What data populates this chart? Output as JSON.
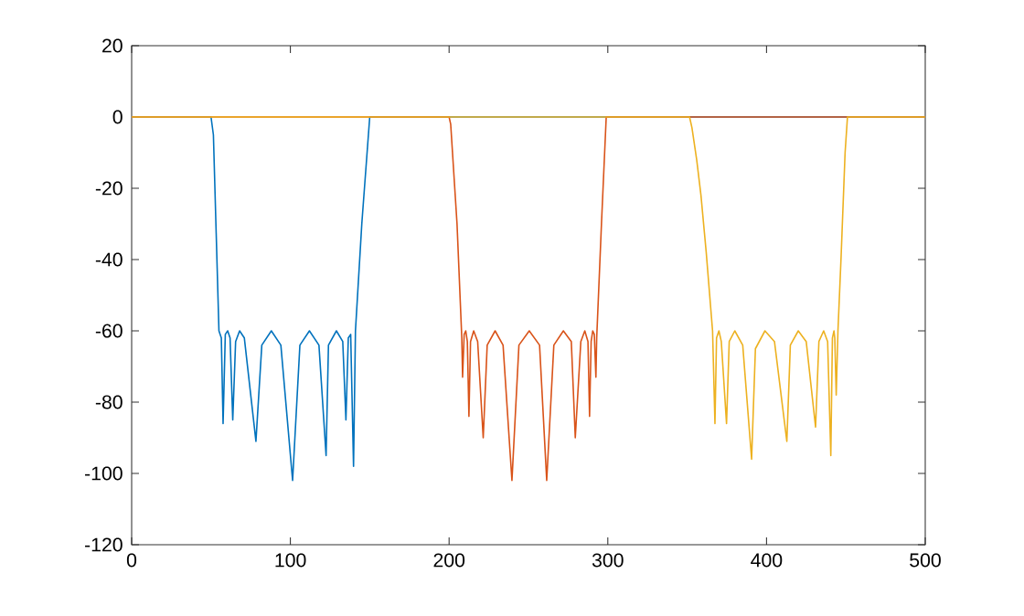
{
  "chart_data": {
    "type": "line",
    "xlim": [
      0,
      500
    ],
    "ylim": [
      -120,
      20
    ],
    "xticks": [
      0,
      100,
      200,
      300,
      400,
      500
    ],
    "yticks": [
      -120,
      -100,
      -80,
      -60,
      -40,
      -20,
      0,
      20
    ],
    "grid": false,
    "marker": "none",
    "line_style": "solid",
    "series": [
      {
        "color": "#0072bd",
        "x": [
          0,
          50,
          51.5,
          55,
          56.5,
          57.6,
          59,
          60.5,
          62,
          63.7,
          65.5,
          68,
          71,
          78.3,
          82,
          88,
          94,
          101.4,
          106,
          112,
          118,
          122.5,
          124,
          129,
          133,
          135,
          136.5,
          138,
          139.8,
          141,
          145,
          150,
          500
        ],
        "values": [
          0,
          0,
          -5,
          -60,
          -62,
          -86,
          -61,
          -60,
          -62,
          -85,
          -63,
          -60,
          -62,
          -91,
          -64,
          -60,
          -64,
          -102,
          -64,
          -60,
          -64,
          -95,
          -64,
          -60,
          -63,
          -85,
          -62,
          -61,
          -98,
          -60,
          -30,
          0,
          0
        ]
      },
      {
        "color": "#d95319",
        "x": [
          0,
          200,
          201,
          205,
          208,
          208.5,
          209.5,
          210.5,
          211.5,
          212.5,
          213.5,
          215.5,
          218,
          221.5,
          224,
          229,
          234,
          239.6,
          244,
          250.5,
          257,
          261.5,
          266,
          272,
          277,
          279.5,
          283,
          285.5,
          287.5,
          288.5,
          289.5,
          290.5,
          291.5,
          292.5,
          293,
          296,
          299,
          500
        ],
        "values": [
          0,
          0,
          -2,
          -30,
          -62,
          -73,
          -61,
          -60,
          -63,
          -84,
          -63,
          -60,
          -63,
          -90,
          -64,
          -60,
          -64,
          -102,
          -64,
          -60,
          -64,
          -102,
          -64,
          -60,
          -63,
          -90,
          -63,
          -60,
          -63,
          -84,
          -63,
          -60,
          -61,
          -73,
          -62,
          -30,
          0,
          0
        ]
      },
      {
        "color": "#edb120",
        "x": [
          0,
          351.5,
          353,
          356,
          358.7,
          362,
          366,
          367.5,
          368.5,
          370,
          371.5,
          374.8,
          376.5,
          380,
          385,
          390.6,
          393,
          399,
          405,
          412.8,
          415,
          420,
          425,
          430.9,
          433,
          436,
          438.5,
          440.5,
          441.5,
          442.5,
          443,
          443.9,
          445,
          447,
          449.5,
          451,
          500
        ],
        "values": [
          0,
          0,
          -3,
          -12,
          -22,
          -38,
          -60,
          -86,
          -62,
          -60,
          -63,
          -86,
          -63,
          -60,
          -64,
          -96,
          -65,
          -60,
          -63,
          -91,
          -64,
          -60,
          -63,
          -87,
          -63,
          -60,
          -63,
          -95,
          -62,
          -60,
          -62,
          -78,
          -60,
          -39,
          -10,
          0,
          0
        ]
      }
    ]
  }
}
